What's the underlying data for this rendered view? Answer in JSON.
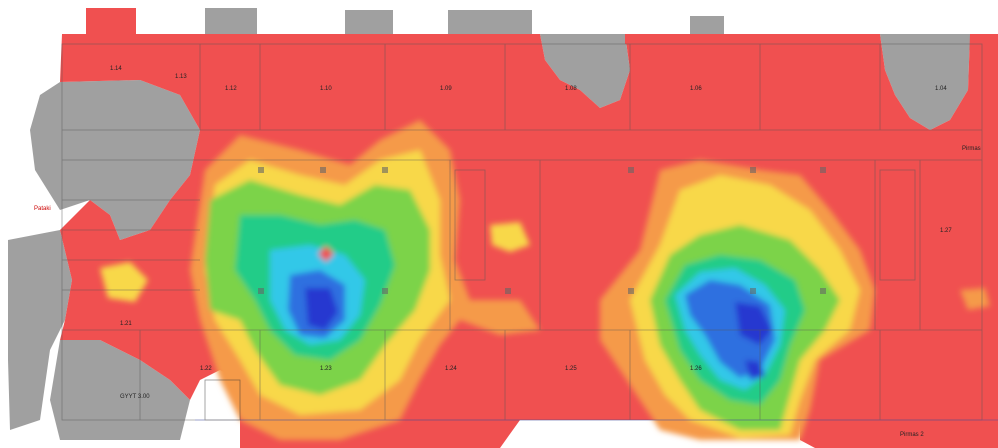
{
  "colors": {
    "background": "#ffffff",
    "no_data": "#a0a0a0",
    "weak": "#f05050",
    "fair": "#f59a4a",
    "medium": "#f8d848",
    "good": "#7cd34a",
    "strong": "#22cc88",
    "very_strong": "#30c8e8",
    "excellent": "#2f6fe0",
    "peak": "#2838d0",
    "walls": "#555555"
  },
  "plan_labels": {
    "room_a": "1.14",
    "room_b": "1.13",
    "room_c": "1.12",
    "room_d": "1.10",
    "room_e": "1.09",
    "room_f": "1.08",
    "room_g": "1.06",
    "room_h": "1.04",
    "room_i": "1.21",
    "room_j": "1.22",
    "room_k": "1.23",
    "room_l": "1.24",
    "room_m": "1.25",
    "room_n": "1.26",
    "room_o": "1.27",
    "west_entry": "Pataki",
    "east_stair": "Pirmas",
    "bottom_room": "GYYT 3.00",
    "bottom_right_tag": "Pirmas 2"
  }
}
